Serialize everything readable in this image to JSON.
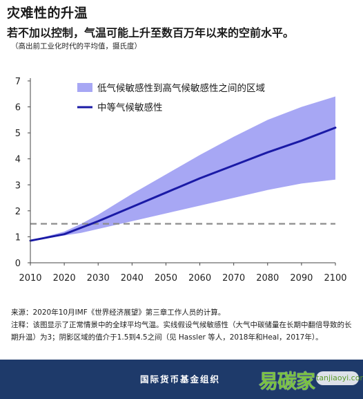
{
  "header": {
    "title": "灾难性的升温",
    "subtitle": "若不加以控制，气温可能上升至数百万年以来的空前水平。",
    "unit_note": "（高出前工业化时代的平均值，摄氏度）"
  },
  "chart_data": {
    "type": "line",
    "x": [
      2010,
      2020,
      2025,
      2030,
      2040,
      2050,
      2060,
      2070,
      2080,
      2090,
      2100
    ],
    "series": [
      {
        "name": "中等气候敏感性",
        "kind": "line",
        "values": [
          0.85,
          1.1,
          1.35,
          1.6,
          2.15,
          2.7,
          3.25,
          3.75,
          4.25,
          4.7,
          5.2
        ]
      },
      {
        "name": "低气候敏感性到高气候敏感性之间的区域",
        "kind": "band",
        "lower": [
          0.85,
          1.05,
          1.15,
          1.3,
          1.6,
          1.9,
          2.2,
          2.5,
          2.8,
          3.05,
          3.2
        ],
        "upper": [
          0.85,
          1.2,
          1.5,
          1.85,
          2.65,
          3.4,
          4.15,
          4.85,
          5.5,
          6.0,
          6.4
        ]
      }
    ],
    "reference_line": {
      "y": 1.5,
      "style": "dashed"
    },
    "xlim": [
      2010,
      2100
    ],
    "ylim": [
      0,
      7
    ],
    "x_ticks": [
      2010,
      2020,
      2030,
      2040,
      2050,
      2060,
      2070,
      2080,
      2090,
      2100
    ],
    "y_ticks": [
      0,
      1,
      2,
      3,
      4,
      5,
      6,
      7
    ],
    "legend_position": "top-left",
    "grid": false
  },
  "colors": {
    "line": "#1a1aa6",
    "band": "#a7a7f4",
    "reference": "#8c8c8c",
    "footer": "#1e3a6a"
  },
  "notes": {
    "source": "来源：2020年10月IMF《世界经济展望》第三章工作人员的计算。",
    "note": "注释：该图显示了正常情景中的全球平均气温。实线假设气候敏感性（大气中碳储量在长期中翻倍导致的长期升温）为3；阴影区域的值介于1.5到4.5之间（见 Hassler 等人，2018年和Heal，2017年）。"
  },
  "footer": {
    "org": "国际货币基金组织"
  },
  "watermark": {
    "logo_text": "易碳家",
    "url": "tanjiaoyi.com"
  }
}
